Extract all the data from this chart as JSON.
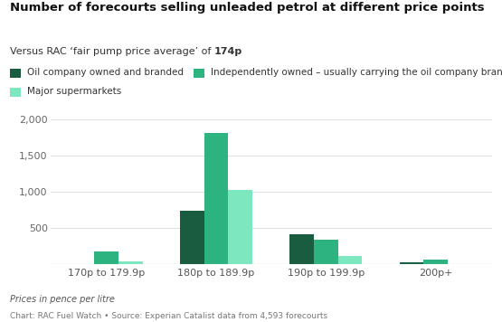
{
  "title": "Number of forecourts selling unleaded petrol at different price points",
  "subtitle_normal": "Versus RAC ‘fair pump price average’ of ",
  "subtitle_bold": "174p",
  "categories": [
    "170p to 179.9p",
    "180p to 189.9p",
    "190p to 199.9p",
    "200p+"
  ],
  "series": {
    "Oil company owned and branded": [
      0,
      740,
      415,
      30
    ],
    "Independently owned – usually carrying the oil company brand": [
      175,
      1810,
      330,
      65
    ],
    "Major supermarkets": [
      35,
      1020,
      110,
      0
    ]
  },
  "colors": {
    "Oil company owned and branded": "#1a5c40",
    "Independently owned – usually carrying the oil company brand": "#2db380",
    "Major supermarkets": "#7de8c0"
  },
  "ylim": [
    0,
    2000
  ],
  "yticks": [
    0,
    500,
    1000,
    1500,
    2000
  ],
  "footer_italic": "Prices in pence per litre",
  "footer_normal": "Chart: RAC Fuel Watch • Source: Experian Catalist data from 4,593 forecourts",
  "background_color": "#ffffff",
  "grid_color": "#e0e0e0",
  "bar_width": 0.22
}
